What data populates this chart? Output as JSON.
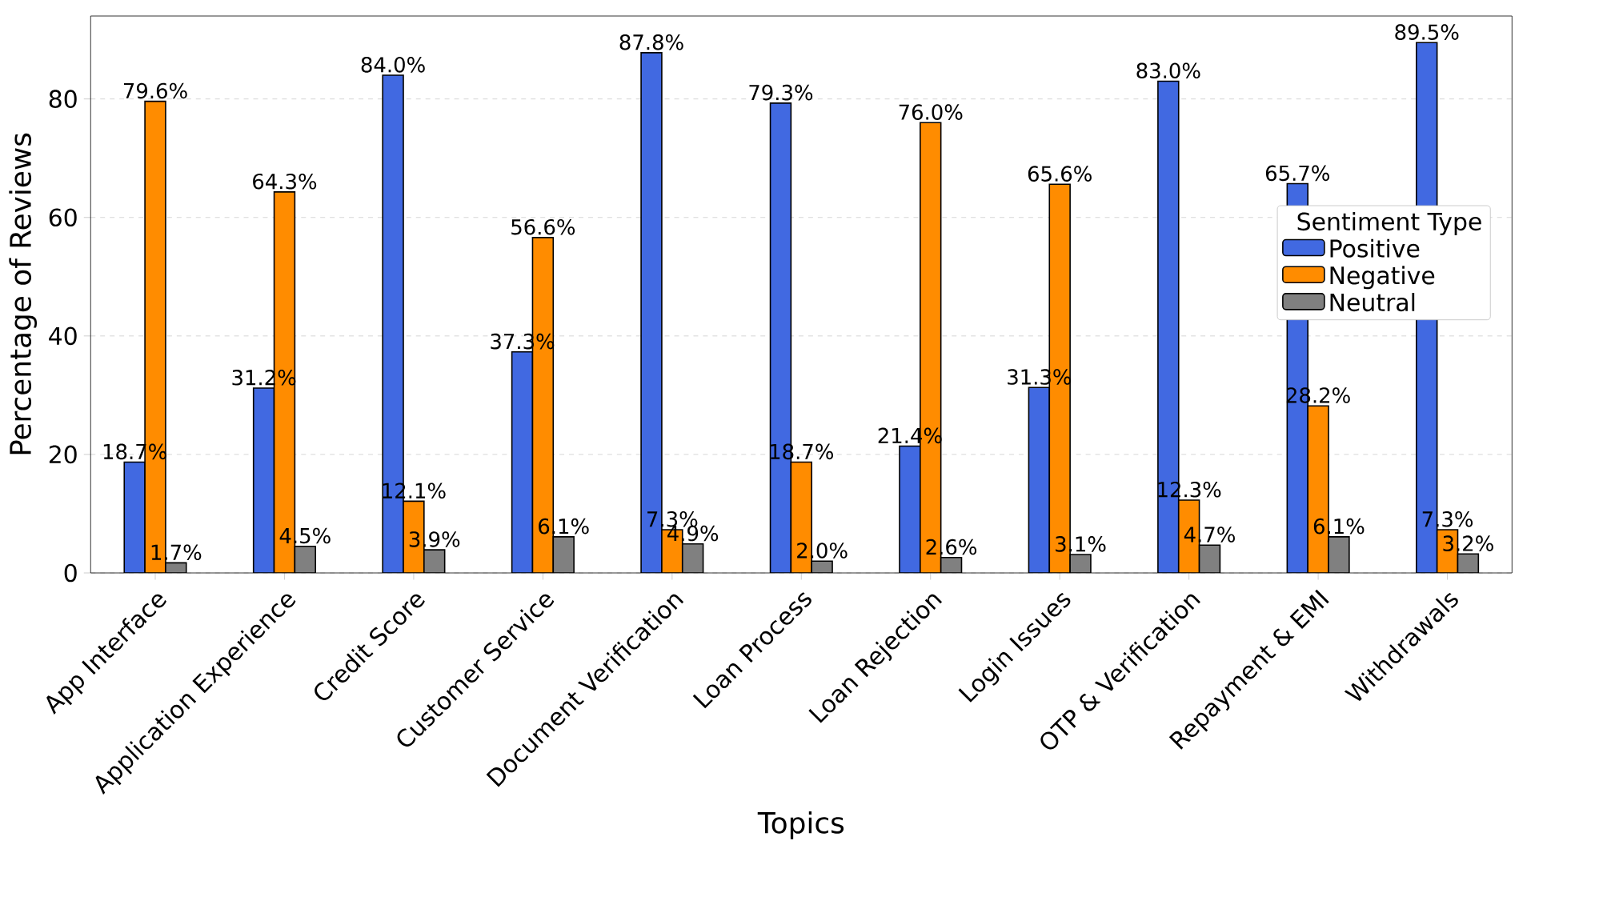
{
  "chart_data": {
    "type": "bar",
    "xlabel": "Topics",
    "ylabel": "Percentage of Reviews",
    "legend_title": "Sentiment Type",
    "categories": [
      "App Interface",
      "Application Experience",
      "Credit Score",
      "Customer Service",
      "Document Verification",
      "Loan Process",
      "Loan Rejection",
      "Login Issues",
      "OTP & Verification",
      "Repayment & EMI",
      "Withdrawals"
    ],
    "series": [
      {
        "name": "Positive",
        "color": "#4169e1",
        "values": [
          18.7,
          31.2,
          84.0,
          37.3,
          87.8,
          79.3,
          21.4,
          31.3,
          83.0,
          65.7,
          89.5
        ],
        "value_labels": [
          "18.7%",
          "31.2%",
          "84.0%",
          "37.3%",
          "87.8%",
          "79.3%",
          "21.4%",
          "31.3%",
          "83.0%",
          "65.7%",
          "89.5%"
        ]
      },
      {
        "name": "Negative",
        "color": "#ff8c00",
        "values": [
          79.6,
          64.3,
          12.1,
          56.6,
          7.3,
          18.7,
          76.0,
          65.6,
          12.3,
          28.2,
          7.3
        ],
        "value_labels": [
          "79.6%",
          "64.3%",
          "12.1%",
          "56.6%",
          "7.3%",
          "18.7%",
          "76.0%",
          "65.6%",
          "12.3%",
          "28.2%",
          "7.3%"
        ]
      },
      {
        "name": "Neutral",
        "color": "#808080",
        "values": [
          1.7,
          4.5,
          3.9,
          6.1,
          4.9,
          2.0,
          2.6,
          3.1,
          4.7,
          6.1,
          3.2
        ],
        "value_labels": [
          "1.7%",
          "4.5%",
          "3.9%",
          "6.1%",
          "4.9%",
          "2.0%",
          "2.6%",
          "3.1%",
          "4.7%",
          "6.1%",
          "3.2%"
        ]
      }
    ],
    "ylim": [
      0,
      94
    ],
    "yticks": [
      0,
      20,
      40,
      60,
      80
    ],
    "grid": "y",
    "legend": "right"
  }
}
